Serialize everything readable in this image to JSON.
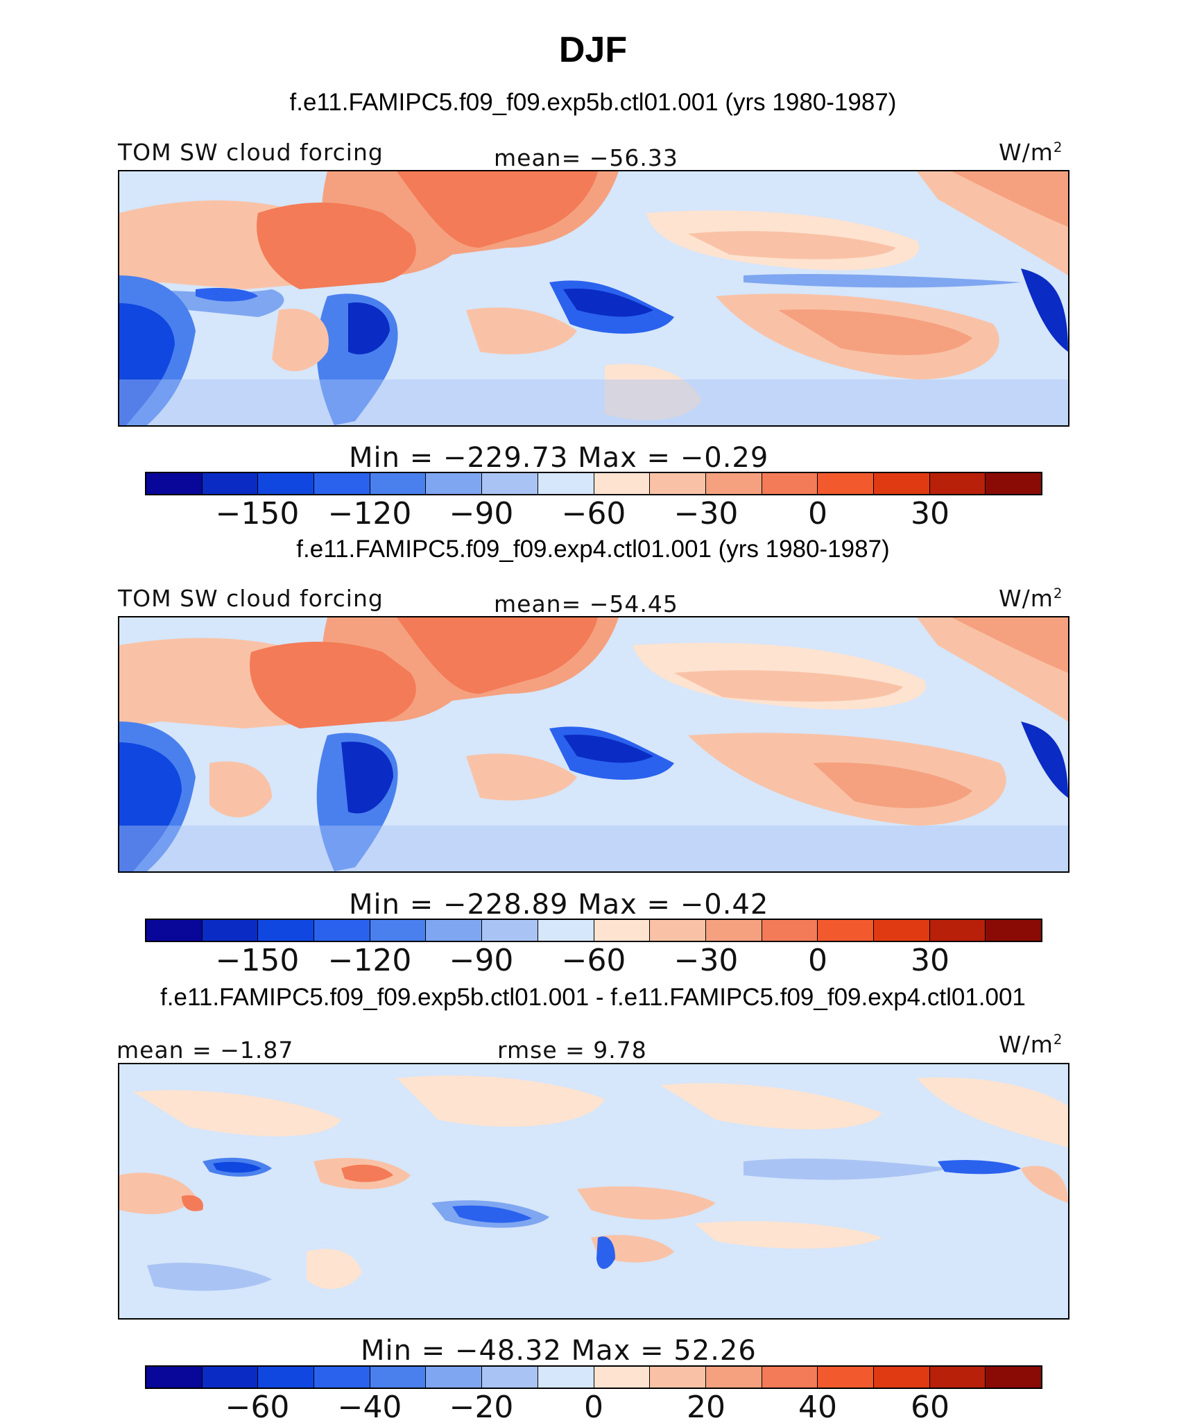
{
  "title": "DJF",
  "colors": {
    "palette": [
      "#08079a",
      "#0a2cc4",
      "#0f47e0",
      "#2a62ee",
      "#4a80ee",
      "#7fa6f0",
      "#a9c4f4",
      "#d6e6fb",
      "#fde3d0",
      "#f9c2a6",
      "#f5a17f",
      "#f37b57",
      "#f25a2e",
      "#e03a12",
      "#b8200a",
      "#8a0b06"
    ]
  },
  "panels": [
    {
      "case_title": "f.e11.FAMIPC5.f09_f09.exp5b.ctl01.001 (yrs 1980-1987)",
      "variable": "TOM SW cloud forcing",
      "stat_text": "mean= −56.33",
      "units": "W/m",
      "units_sup": "2",
      "minmax": "Min  =  −229.73  Max  =   −0.29",
      "ticks": [
        "−150",
        "−120",
        "−90",
        "−60",
        "−30",
        "0",
        "30"
      ]
    },
    {
      "case_title": "f.e11.FAMIPC5.f09_f09.exp4.ctl01.001 (yrs 1980-1987)",
      "variable": "TOM SW cloud forcing",
      "stat_text": "mean= −54.45",
      "units": "W/m",
      "units_sup": "2",
      "minmax": "Min  =  −228.89  Max  =   −0.42",
      "ticks": [
        "−150",
        "−120",
        "−90",
        "−60",
        "−30",
        "0",
        "30"
      ]
    },
    {
      "case_title": "f.e11.FAMIPC5.f09_f09.exp5b.ctl01.001 - f.e11.FAMIPC5.f09_f09.exp4.ctl01.001",
      "mean_text": "mean  =   −1.87",
      "rmse_text": "rmse  =    9.78",
      "units": "W/m",
      "units_sup": "2",
      "minmax": "Min  =  −48.32  Max  =   52.26",
      "ticks": [
        "−60",
        "−40",
        "−20",
        "0",
        "20",
        "40",
        "60"
      ]
    }
  ]
}
